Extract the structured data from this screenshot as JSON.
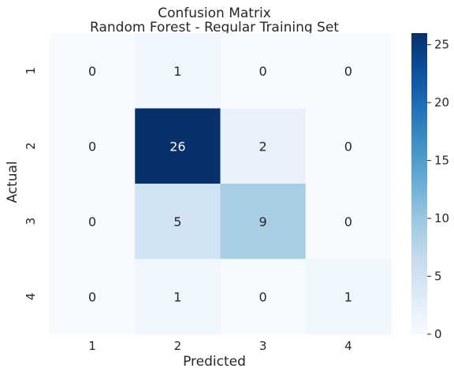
{
  "chart_data": {
    "type": "heatmap",
    "title": "Confusion Matrix",
    "subtitle": "Random Forest - Regular Training Set",
    "xlabel": "Predicted",
    "ylabel": "Actual",
    "x_categories": [
      "1",
      "2",
      "3",
      "4"
    ],
    "y_categories": [
      "1",
      "2",
      "3",
      "4"
    ],
    "values": [
      [
        0,
        1,
        0,
        0
      ],
      [
        0,
        26,
        2,
        0
      ],
      [
        0,
        5,
        9,
        0
      ],
      [
        0,
        1,
        0,
        1
      ]
    ],
    "colormap": "Blues",
    "colorbar": {
      "min": 0,
      "max": 26,
      "ticks": [
        0,
        5,
        10,
        15,
        20,
        25
      ]
    },
    "colors": {
      "low": "#f7fbff",
      "high": "#08306b",
      "text_dark": "#262626",
      "text_light": "#ffffff"
    }
  }
}
